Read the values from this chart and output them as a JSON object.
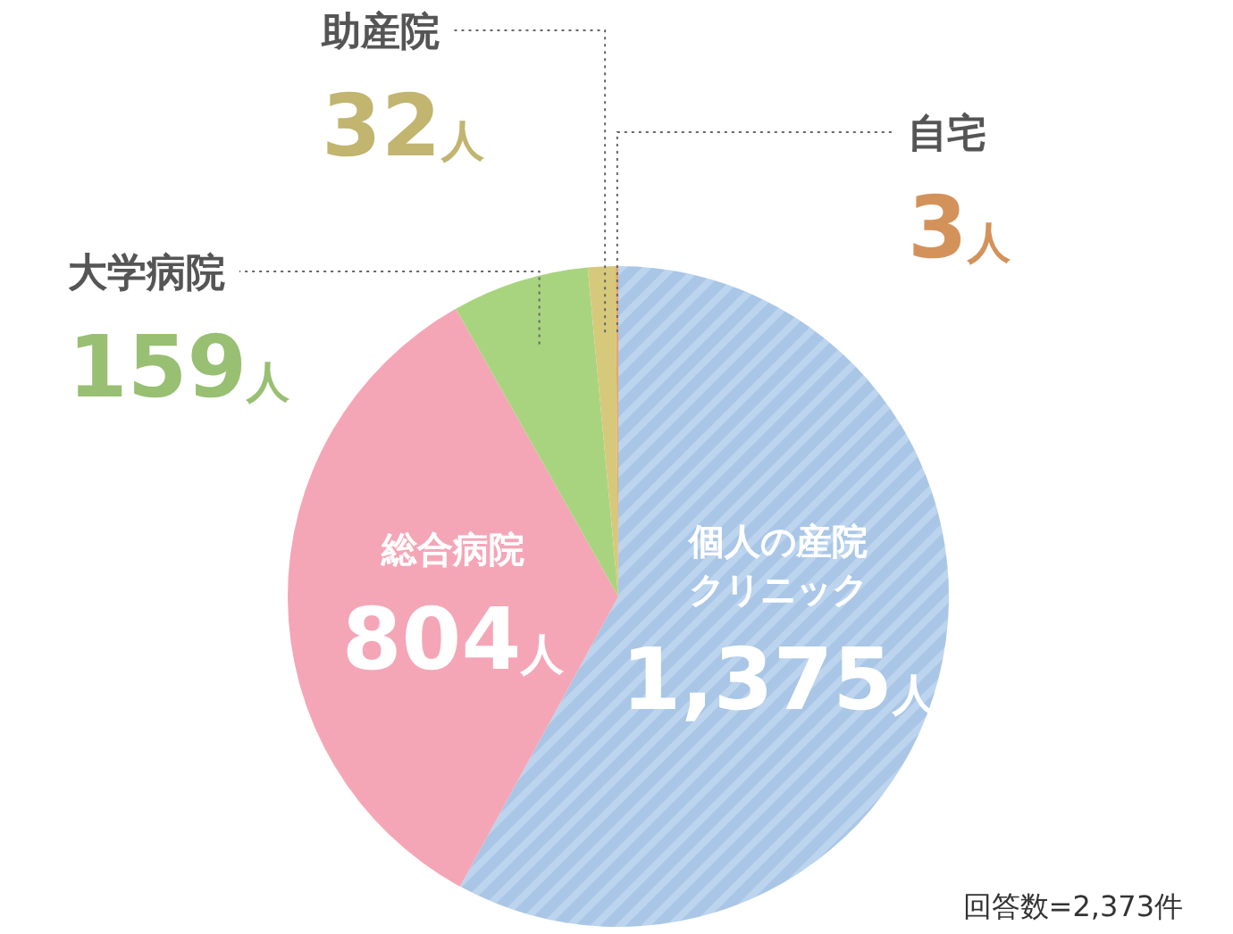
{
  "chart_data": {
    "type": "pie",
    "categories": [
      "個人の産院クリニック",
      "総合病院",
      "大学病院",
      "助産院",
      "自宅"
    ],
    "values": [
      1375,
      804,
      159,
      32,
      3
    ],
    "value_labels": [
      "1,375人",
      "804人",
      "159人",
      "32人",
      "3人"
    ],
    "colors": [
      "#a9c6e6",
      "#f4a6b7",
      "#a9d47f",
      "#d6c97c",
      "#eca265"
    ],
    "annotations": [
      "回答数=2,373件"
    ]
  }
}
